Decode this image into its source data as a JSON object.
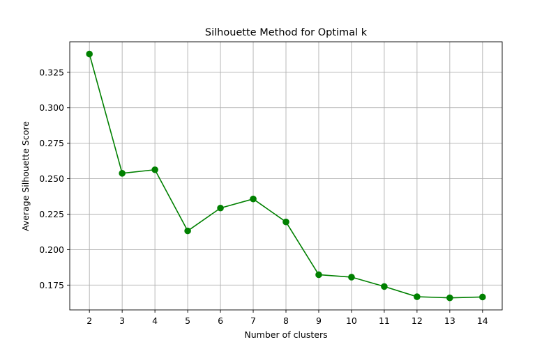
{
  "chart_data": {
    "type": "line",
    "title": "Silhouette Method for Optimal k",
    "xlabel": "Number of clusters",
    "ylabel": "Average Silhouette Score",
    "x": [
      2,
      3,
      4,
      5,
      6,
      7,
      8,
      9,
      10,
      11,
      12,
      13,
      14
    ],
    "series": [
      {
        "values": [
          0.3379,
          0.2538,
          0.2563,
          0.2132,
          0.2293,
          0.2357,
          0.2195,
          0.1823,
          0.1806,
          0.174,
          0.1668,
          0.166,
          0.1666
        ],
        "color": "#008000",
        "marker": "circle"
      }
    ],
    "xticks": [
      "2",
      "3",
      "4",
      "5",
      "6",
      "7",
      "8",
      "9",
      "10",
      "11",
      "12",
      "13",
      "14"
    ],
    "yticks": [
      "0.175",
      "0.200",
      "0.225",
      "0.250",
      "0.275",
      "0.300",
      "0.325"
    ],
    "ytick_values": [
      0.175,
      0.2,
      0.225,
      0.25,
      0.275,
      0.3,
      0.325
    ],
    "xlim": [
      1.4,
      14.6
    ],
    "ylim": [
      0.1575,
      0.3465
    ],
    "grid": true,
    "grid_color": "#b0b0b0",
    "legend": false
  }
}
